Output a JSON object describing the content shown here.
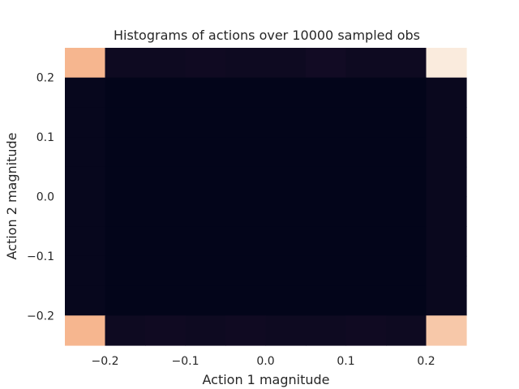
{
  "chart_data": {
    "type": "heatmap",
    "title": "Histograms of actions over 10000 sampled obs",
    "xlabel": "Action 1 magnitude",
    "ylabel": "Action 2 magnitude",
    "xlim": [
      -0.25,
      0.25
    ],
    "ylim": [
      -0.25,
      0.25
    ],
    "xticks": [
      -0.2,
      -0.1,
      0.0,
      0.1,
      0.2
    ],
    "yticks": [
      -0.2,
      -0.1,
      0.0,
      0.1,
      0.2
    ],
    "xtick_labels": [
      "−0.2",
      "−0.1",
      "0.0",
      "0.1",
      "0.2"
    ],
    "ytick_labels": [
      "−0.2",
      "−0.1",
      "0.0",
      "0.1",
      "0.2"
    ],
    "x_bin_edges": [
      -0.25,
      -0.2,
      -0.15,
      -0.1,
      -0.05,
      0.0,
      0.05,
      0.1,
      0.15,
      0.2,
      0.25
    ],
    "y_bin_edges": [
      -0.25,
      -0.2,
      -0.15,
      -0.1,
      -0.05,
      0.0,
      0.05,
      0.1,
      0.15,
      0.2,
      0.25
    ],
    "relative_counts_rows_top_to_bottom": [
      [
        0.85,
        0.05,
        0.05,
        0.06,
        0.05,
        0.05,
        0.07,
        0.05,
        0.05,
        1.0
      ],
      [
        0.02,
        0.0,
        0.0,
        0.0,
        0.0,
        0.0,
        0.0,
        0.0,
        0.0,
        0.03
      ],
      [
        0.02,
        0.0,
        0.0,
        0.0,
        0.0,
        0.0,
        0.0,
        0.0,
        0.0,
        0.03
      ],
      [
        0.02,
        0.0,
        0.0,
        0.0,
        0.0,
        0.0,
        0.0,
        0.0,
        0.0,
        0.03
      ],
      [
        0.02,
        0.0,
        0.0,
        0.0,
        0.0,
        0.0,
        0.0,
        0.0,
        0.0,
        0.03
      ],
      [
        0.02,
        0.0,
        0.0,
        0.0,
        0.0,
        0.0,
        0.0,
        0.0,
        0.0,
        0.03
      ],
      [
        0.02,
        0.0,
        0.0,
        0.0,
        0.0,
        0.0,
        0.0,
        0.0,
        0.0,
        0.03
      ],
      [
        0.02,
        0.0,
        0.0,
        0.0,
        0.0,
        0.0,
        0.0,
        0.0,
        0.0,
        0.03
      ],
      [
        0.02,
        0.0,
        0.0,
        0.0,
        0.0,
        0.0,
        0.0,
        0.0,
        0.0,
        0.03
      ],
      [
        0.85,
        0.05,
        0.06,
        0.05,
        0.06,
        0.05,
        0.05,
        0.06,
        0.05,
        0.9
      ]
    ],
    "colormap": "rocket",
    "grid": false,
    "colorbar": false
  }
}
